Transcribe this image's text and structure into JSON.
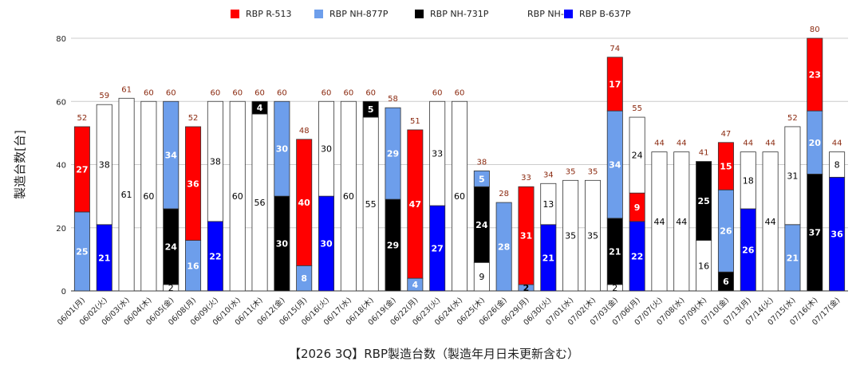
{
  "chart_data": {
    "type": "bar",
    "stacked": true,
    "title": "【2026 3Q】RBP製造台数（製造年月日未更新含む）",
    "ylabel": "製造台数[台]",
    "xlabel": "",
    "ylim": [
      0,
      80
    ],
    "yticks": [
      0,
      20,
      40,
      60,
      80
    ],
    "grid": true,
    "legend_position": "top",
    "categories": [
      "06/01(月)",
      "06/02(火)",
      "06/03(水)",
      "06/04(木)",
      "06/05(金)",
      "06/08(月)",
      "06/09(火)",
      "06/10(水)",
      "06/11(木)",
      "06/12(金)",
      "06/15(月)",
      "06/16(火)",
      "06/17(水)",
      "06/18(木)",
      "06/19(金)",
      "06/22(月)",
      "06/23(火)",
      "06/24(水)",
      "06/25(木)",
      "06/26(金)",
      "06/29(月)",
      "06/30(火)",
      "07/01(水)",
      "07/02(木)",
      "07/03(金)",
      "07/06(月)",
      "07/07(火)",
      "07/08(水)",
      "07/09(木)",
      "07/10(金)",
      "07/13(月)",
      "07/14(火)",
      "07/15(水)",
      "07/16(木)",
      "07/17(金)"
    ],
    "totals": [
      52,
      59,
      61,
      60,
      60,
      52,
      60,
      60,
      60,
      60,
      48,
      60,
      60,
      60,
      58,
      51,
      60,
      60,
      38,
      28,
      33,
      34,
      35,
      35,
      74,
      55,
      44,
      44,
      41,
      47,
      44,
      44,
      52,
      80,
      44
    ],
    "series": [
      {
        "name": "RBP B-637P",
        "color": "#0000ff",
        "label_color": "#ffffff",
        "values": [
          0,
          21,
          0,
          0,
          0,
          0,
          22,
          0,
          0,
          0,
          0,
          30,
          0,
          0,
          0,
          0,
          27,
          0,
          0,
          0,
          0,
          21,
          0,
          0,
          0,
          22,
          0,
          0,
          0,
          0,
          26,
          0,
          0,
          0,
          36
        ]
      },
      {
        "name": "RBP NH-0",
        "color": "#ffffff",
        "label_color": "#000000",
        "values": [
          0,
          0,
          0,
          0,
          2,
          0,
          0,
          0,
          0,
          0,
          0,
          0,
          0,
          0,
          0,
          0,
          0,
          0,
          9,
          0,
          0,
          0,
          0,
          0,
          2,
          0,
          0,
          0,
          16,
          0,
          0,
          0,
          0,
          0,
          0
        ]
      },
      {
        "name": "RBP NH-731P",
        "color": "#000000",
        "label_color": "#ffffff",
        "values": [
          0,
          0,
          0,
          0,
          24,
          0,
          0,
          0,
          0,
          30,
          0,
          0,
          0,
          0,
          29,
          0,
          0,
          0,
          24,
          0,
          0,
          0,
          0,
          0,
          21,
          0,
          0,
          0,
          25,
          6,
          0,
          0,
          0,
          37,
          0
        ]
      },
      {
        "name": "RBP NH-877P",
        "color": "#6d9eeb",
        "label_color": "#ffffff",
        "values": [
          25,
          0,
          0,
          0,
          34,
          16,
          0,
          0,
          0,
          30,
          8,
          0,
          0,
          0,
          29,
          4,
          0,
          0,
          5,
          28,
          2,
          0,
          0,
          0,
          34,
          0,
          0,
          0,
          0,
          26,
          0,
          0,
          21,
          20,
          0
        ]
      },
      {
        "name": "RBP R-513",
        "color": "#ff0000",
        "label_color": "#ffffff",
        "values": [
          27,
          0,
          0,
          0,
          0,
          36,
          0,
          0,
          0,
          0,
          40,
          0,
          0,
          0,
          0,
          47,
          0,
          0,
          0,
          0,
          31,
          0,
          0,
          0,
          17,
          9,
          0,
          0,
          0,
          15,
          0,
          0,
          0,
          23,
          0
        ]
      },
      {
        "name": "",
        "color": "#ffffff",
        "label_color": "#000000",
        "values": [
          0,
          38,
          61,
          60,
          0,
          0,
          38,
          60,
          56,
          0,
          0,
          30,
          60,
          55,
          0,
          0,
          33,
          60,
          0,
          0,
          0,
          13,
          35,
          35,
          0,
          24,
          44,
          44,
          0,
          0,
          18,
          44,
          31,
          0,
          8
        ]
      },
      {
        "name": "",
        "color": "#000000",
        "label_color": "#ffffff",
        "values": [
          0,
          0,
          0,
          0,
          0,
          0,
          0,
          0,
          4,
          0,
          0,
          0,
          0,
          5,
          0,
          0,
          0,
          0,
          0,
          0,
          0,
          0,
          0,
          0,
          0,
          0,
          0,
          0,
          0,
          0,
          0,
          0,
          0,
          0,
          0
        ]
      }
    ],
    "legend": [
      {
        "name": "RBP R-513",
        "color": "#ff0000"
      },
      {
        "name": "RBP NH-877P",
        "color": "#6d9eeb"
      },
      {
        "name": "RBP NH-731P",
        "color": "#000000"
      },
      {
        "name": "RBP NH-0",
        "color": "#ffffff"
      },
      {
        "name": "RBP B-637P",
        "color": "#0000ff"
      }
    ]
  }
}
